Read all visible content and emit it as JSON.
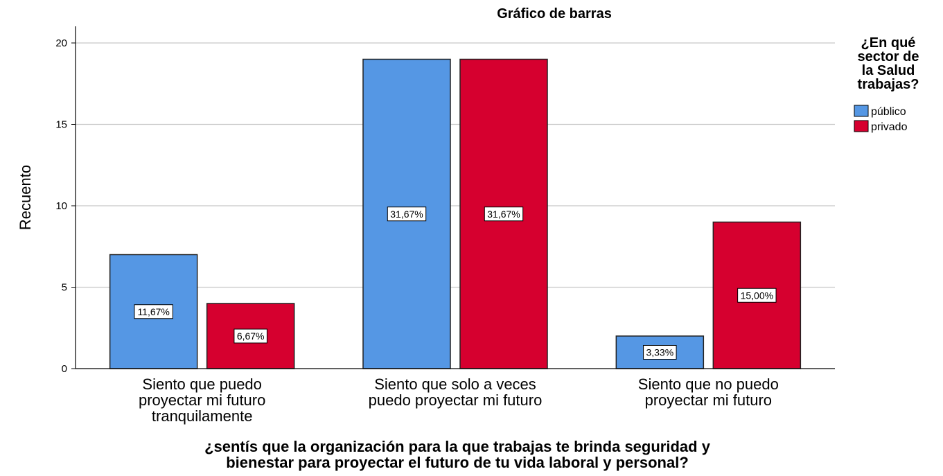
{
  "chart_data": {
    "type": "bar",
    "title": "Gráfico de barras",
    "ylabel": "Recuento",
    "xlabel_lines": [
      "¿sentís que la organización para la que trabajas te brinda seguridad y",
      "bienestar para proyectar el futuro de tu vida laboral y personal?"
    ],
    "categories": [
      [
        "Siento que puedo",
        "proyectar mi futuro",
        "tranquilamente"
      ],
      [
        "Siento que solo a veces",
        "puedo proyectar mi futuro"
      ],
      [
        "Siento que no puedo",
        "proyectar mi futuro"
      ]
    ],
    "yticks": [
      0,
      5,
      10,
      15,
      20
    ],
    "ylim": [
      0,
      21
    ],
    "grid": true,
    "legend": {
      "title_lines": [
        "¿En qué",
        "sector de",
        "la Salud",
        "trabajas?"
      ],
      "placement": "top-right"
    },
    "series": [
      {
        "name": "público",
        "color": "#5597e4",
        "values": [
          7,
          19,
          2
        ],
        "labels": [
          "11,67%",
          "31,67%",
          "3,33%"
        ]
      },
      {
        "name": "privado",
        "color": "#d6002f",
        "values": [
          4,
          19,
          9
        ],
        "labels": [
          "6,67%",
          "31,67%",
          "15,00%"
        ]
      }
    ],
    "colors": {
      "grid": "#c8c8c8",
      "axis": "#000000",
      "bar_stroke": "#222222"
    }
  }
}
